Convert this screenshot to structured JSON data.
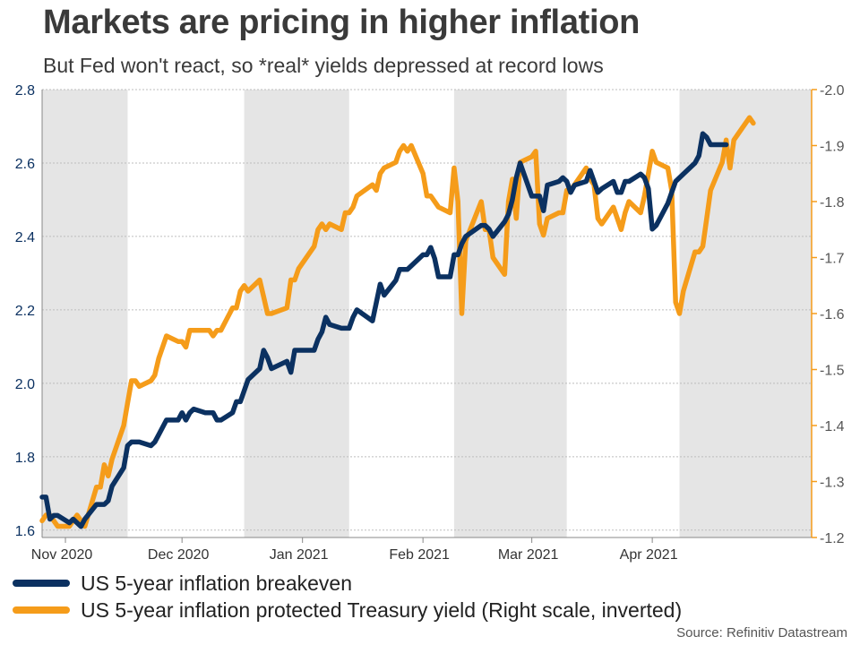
{
  "header": {
    "title": "Markets are pricing in higher inflation",
    "subtitle": "But Fed won't react, so *real* yields depressed at record lows"
  },
  "legend": {
    "items": [
      {
        "label": "US 5-year inflation breakeven",
        "color": "#0b3161"
      },
      {
        "label": "US 5-year inflation protected Treasury yield (Right scale, inverted)",
        "color": "#f59c1a"
      }
    ]
  },
  "source": "Source: Refinitiv Datastream",
  "colors": {
    "shade": "#e5e5e5",
    "left_axis": "#0b3161",
    "right_axis": "#f59c1a",
    "grid": "#bdbdbd"
  },
  "chart_data": {
    "type": "line",
    "x_type": "date",
    "xlim": [
      "2020-10-26",
      "2021-05-12"
    ],
    "x_ticks": [
      {
        "date": "2020-11-01",
        "label": "Nov 2020"
      },
      {
        "date": "2020-12-01",
        "label": "Dec 2020"
      },
      {
        "date": "2021-01-01",
        "label": "Jan 2021"
      },
      {
        "date": "2021-02-01",
        "label": "Feb 2021"
      },
      {
        "date": "2021-03-01",
        "label": "Mar 2021"
      },
      {
        "date": "2021-04-01",
        "label": "Apr 2021"
      }
    ],
    "shaded_months": [
      [
        "2020-10-26",
        "2020-11-17"
      ],
      [
        "2020-12-17",
        "2021-01-13"
      ],
      [
        "2021-02-09",
        "2021-03-10"
      ],
      [
        "2021-04-08",
        "2021-05-12"
      ]
    ],
    "y_left": {
      "min": 1.58,
      "max": 2.8,
      "ticks": [
        1.6,
        1.8,
        2.0,
        2.2,
        2.4,
        2.6,
        2.8
      ],
      "labels": [
        "1.6",
        "1.8",
        "2.0",
        "2.2",
        "2.4",
        "2.6",
        "2.8"
      ]
    },
    "y_right": {
      "inverted": true,
      "top": -2.0,
      "bottom": -1.2,
      "ticks": [
        -2.0,
        -1.9,
        -1.8,
        -1.7,
        -1.6,
        -1.5,
        -1.4,
        -1.3,
        -1.2
      ],
      "labels": [
        "-2.0",
        "-1.9",
        "-1.8",
        "-1.7",
        "-1.6",
        "-1.5",
        "-1.4",
        "-1.3",
        "-1.2"
      ]
    },
    "grid": true,
    "legend_position": "bottom-left",
    "series": [
      {
        "name": "US 5-year inflation breakeven",
        "axis": "left",
        "color": "#0b3161",
        "points": [
          [
            "2020-10-26",
            1.69
          ],
          [
            "2020-10-27",
            1.69
          ],
          [
            "2020-10-28",
            1.63
          ],
          [
            "2020-10-29",
            1.64
          ],
          [
            "2020-10-30",
            1.64
          ],
          [
            "2020-11-02",
            1.62
          ],
          [
            "2020-11-03",
            1.63
          ],
          [
            "2020-11-04",
            1.62
          ],
          [
            "2020-11-05",
            1.61
          ],
          [
            "2020-11-06",
            1.63
          ],
          [
            "2020-11-09",
            1.67
          ],
          [
            "2020-11-10",
            1.67
          ],
          [
            "2020-11-11",
            1.67
          ],
          [
            "2020-11-12",
            1.68
          ],
          [
            "2020-11-13",
            1.72
          ],
          [
            "2020-11-16",
            1.77
          ],
          [
            "2020-11-17",
            1.83
          ],
          [
            "2020-11-18",
            1.84
          ],
          [
            "2020-11-19",
            1.84
          ],
          [
            "2020-11-20",
            1.84
          ],
          [
            "2020-11-23",
            1.83
          ],
          [
            "2020-11-24",
            1.84
          ],
          [
            "2020-11-25",
            1.86
          ],
          [
            "2020-11-27",
            1.9
          ],
          [
            "2020-11-30",
            1.9
          ],
          [
            "2020-12-01",
            1.92
          ],
          [
            "2020-12-02",
            1.9
          ],
          [
            "2020-12-03",
            1.92
          ],
          [
            "2020-12-04",
            1.93
          ],
          [
            "2020-12-07",
            1.92
          ],
          [
            "2020-12-08",
            1.92
          ],
          [
            "2020-12-09",
            1.92
          ],
          [
            "2020-12-10",
            1.9
          ],
          [
            "2020-12-11",
            1.9
          ],
          [
            "2020-12-14",
            1.92
          ],
          [
            "2020-12-15",
            1.95
          ],
          [
            "2020-12-16",
            1.95
          ],
          [
            "2020-12-17",
            1.98
          ],
          [
            "2020-12-18",
            2.01
          ],
          [
            "2020-12-21",
            2.04
          ],
          [
            "2020-12-22",
            2.09
          ],
          [
            "2020-12-23",
            2.07
          ],
          [
            "2020-12-24",
            2.04
          ],
          [
            "2020-12-28",
            2.06
          ],
          [
            "2020-12-29",
            2.03
          ],
          [
            "2020-12-30",
            2.09
          ],
          [
            "2020-12-31",
            2.09
          ],
          [
            "2021-01-04",
            2.09
          ],
          [
            "2021-01-05",
            2.12
          ],
          [
            "2021-01-06",
            2.14
          ],
          [
            "2021-01-07",
            2.18
          ],
          [
            "2021-01-08",
            2.16
          ],
          [
            "2021-01-11",
            2.15
          ],
          [
            "2021-01-12",
            2.15
          ],
          [
            "2021-01-13",
            2.15
          ],
          [
            "2021-01-14",
            2.18
          ],
          [
            "2021-01-15",
            2.2
          ],
          [
            "2021-01-19",
            2.17
          ],
          [
            "2021-01-20",
            2.22
          ],
          [
            "2021-01-21",
            2.27
          ],
          [
            "2021-01-22",
            2.24
          ],
          [
            "2021-01-25",
            2.28
          ],
          [
            "2021-01-26",
            2.31
          ],
          [
            "2021-01-27",
            2.31
          ],
          [
            "2021-01-28",
            2.31
          ],
          [
            "2021-01-29",
            2.32
          ],
          [
            "2021-02-01",
            2.35
          ],
          [
            "2021-02-02",
            2.35
          ],
          [
            "2021-02-03",
            2.37
          ],
          [
            "2021-02-04",
            2.34
          ],
          [
            "2021-02-05",
            2.29
          ],
          [
            "2021-02-08",
            2.29
          ],
          [
            "2021-02-09",
            2.35
          ],
          [
            "2021-02-10",
            2.35
          ],
          [
            "2021-02-11",
            2.38
          ],
          [
            "2021-02-12",
            2.4
          ],
          [
            "2021-02-16",
            2.43
          ],
          [
            "2021-02-17",
            2.43
          ],
          [
            "2021-02-18",
            2.42
          ],
          [
            "2021-02-19",
            2.4
          ],
          [
            "2021-02-22",
            2.44
          ],
          [
            "2021-02-23",
            2.46
          ],
          [
            "2021-02-24",
            2.5
          ],
          [
            "2021-02-25",
            2.56
          ],
          [
            "2021-02-26",
            2.6
          ],
          [
            "2021-03-01",
            2.51
          ],
          [
            "2021-03-02",
            2.51
          ],
          [
            "2021-03-03",
            2.51
          ],
          [
            "2021-03-04",
            2.47
          ],
          [
            "2021-03-05",
            2.54
          ],
          [
            "2021-03-08",
            2.55
          ],
          [
            "2021-03-09",
            2.56
          ],
          [
            "2021-03-10",
            2.55
          ],
          [
            "2021-03-11",
            2.52
          ],
          [
            "2021-03-12",
            2.54
          ],
          [
            "2021-03-15",
            2.55
          ],
          [
            "2021-03-16",
            2.58
          ],
          [
            "2021-03-17",
            2.55
          ],
          [
            "2021-03-18",
            2.52
          ],
          [
            "2021-03-19",
            2.53
          ],
          [
            "2021-03-22",
            2.55
          ],
          [
            "2021-03-23",
            2.52
          ],
          [
            "2021-03-24",
            2.52
          ],
          [
            "2021-03-25",
            2.55
          ],
          [
            "2021-03-26",
            2.55
          ],
          [
            "2021-03-29",
            2.57
          ],
          [
            "2021-03-30",
            2.56
          ],
          [
            "2021-03-31",
            2.53
          ],
          [
            "2021-04-01",
            2.42
          ],
          [
            "2021-04-02",
            2.43
          ],
          [
            "2021-04-05",
            2.49
          ],
          [
            "2021-04-06",
            2.52
          ],
          [
            "2021-04-07",
            2.55
          ],
          [
            "2021-04-08",
            2.56
          ],
          [
            "2021-04-09",
            2.57
          ],
          [
            "2021-04-12",
            2.6
          ],
          [
            "2021-04-13",
            2.62
          ],
          [
            "2021-04-14",
            2.68
          ],
          [
            "2021-04-15",
            2.67
          ],
          [
            "2021-04-16",
            2.65
          ],
          [
            "2021-04-19",
            2.65
          ],
          [
            "2021-04-20",
            2.65
          ]
        ]
      },
      {
        "name": "US 5-year inflation protected Treasury yield (Right scale, inverted)",
        "axis": "right",
        "color": "#f59c1a",
        "points": [
          [
            "2020-10-26",
            -1.23
          ],
          [
            "2020-10-27",
            -1.24
          ],
          [
            "2020-10-28",
            -1.24
          ],
          [
            "2020-10-29",
            -1.23
          ],
          [
            "2020-10-30",
            -1.22
          ],
          [
            "2020-11-02",
            -1.22
          ],
          [
            "2020-11-03",
            -1.23
          ],
          [
            "2020-11-04",
            -1.24
          ],
          [
            "2020-11-05",
            -1.23
          ],
          [
            "2020-11-06",
            -1.22
          ],
          [
            "2020-11-09",
            -1.29
          ],
          [
            "2020-11-10",
            -1.29
          ],
          [
            "2020-11-11",
            -1.33
          ],
          [
            "2020-11-12",
            -1.31
          ],
          [
            "2020-11-13",
            -1.34
          ],
          [
            "2020-11-16",
            -1.4
          ],
          [
            "2020-11-17",
            -1.44
          ],
          [
            "2020-11-18",
            -1.48
          ],
          [
            "2020-11-19",
            -1.48
          ],
          [
            "2020-11-20",
            -1.47
          ],
          [
            "2020-11-23",
            -1.48
          ],
          [
            "2020-11-24",
            -1.49
          ],
          [
            "2020-11-25",
            -1.52
          ],
          [
            "2020-11-27",
            -1.56
          ],
          [
            "2020-11-30",
            -1.55
          ],
          [
            "2020-12-01",
            -1.55
          ],
          [
            "2020-12-02",
            -1.54
          ],
          [
            "2020-12-03",
            -1.57
          ],
          [
            "2020-12-04",
            -1.57
          ],
          [
            "2020-12-07",
            -1.57
          ],
          [
            "2020-12-08",
            -1.57
          ],
          [
            "2020-12-09",
            -1.56
          ],
          [
            "2020-12-10",
            -1.57
          ],
          [
            "2020-12-11",
            -1.57
          ],
          [
            "2020-12-14",
            -1.61
          ],
          [
            "2020-12-15",
            -1.61
          ],
          [
            "2020-12-16",
            -1.64
          ],
          [
            "2020-12-17",
            -1.65
          ],
          [
            "2020-12-18",
            -1.64
          ],
          [
            "2020-12-21",
            -1.66
          ],
          [
            "2020-12-22",
            -1.63
          ],
          [
            "2020-12-23",
            -1.6
          ],
          [
            "2020-12-24",
            -1.6
          ],
          [
            "2020-12-28",
            -1.61
          ],
          [
            "2020-12-29",
            -1.66
          ],
          [
            "2020-12-30",
            -1.66
          ],
          [
            "2020-12-31",
            -1.68
          ],
          [
            "2021-01-04",
            -1.72
          ],
          [
            "2021-01-05",
            -1.75
          ],
          [
            "2021-01-06",
            -1.76
          ],
          [
            "2021-01-07",
            -1.75
          ],
          [
            "2021-01-08",
            -1.76
          ],
          [
            "2021-01-11",
            -1.75
          ],
          [
            "2021-01-12",
            -1.78
          ],
          [
            "2021-01-13",
            -1.78
          ],
          [
            "2021-01-14",
            -1.79
          ],
          [
            "2021-01-15",
            -1.81
          ],
          [
            "2021-01-19",
            -1.83
          ],
          [
            "2021-01-20",
            -1.82
          ],
          [
            "2021-01-21",
            -1.85
          ],
          [
            "2021-01-22",
            -1.86
          ],
          [
            "2021-01-25",
            -1.87
          ],
          [
            "2021-01-26",
            -1.89
          ],
          [
            "2021-01-27",
            -1.9
          ],
          [
            "2021-01-28",
            -1.89
          ],
          [
            "2021-01-29",
            -1.9
          ],
          [
            "2021-02-01",
            -1.85
          ],
          [
            "2021-02-02",
            -1.81
          ],
          [
            "2021-02-03",
            -1.81
          ],
          [
            "2021-02-04",
            -1.8
          ],
          [
            "2021-02-05",
            -1.79
          ],
          [
            "2021-02-08",
            -1.78
          ],
          [
            "2021-02-09",
            -1.86
          ],
          [
            "2021-02-10",
            -1.8
          ],
          [
            "2021-02-11",
            -1.6
          ],
          [
            "2021-02-12",
            -1.73
          ],
          [
            "2021-02-16",
            -1.8
          ],
          [
            "2021-02-17",
            -1.75
          ],
          [
            "2021-02-18",
            -1.75
          ],
          [
            "2021-02-19",
            -1.7
          ],
          [
            "2021-02-22",
            -1.67
          ],
          [
            "2021-02-23",
            -1.8
          ],
          [
            "2021-02-24",
            -1.84
          ],
          [
            "2021-02-25",
            -1.77
          ],
          [
            "2021-02-26",
            -1.87
          ],
          [
            "2021-03-01",
            -1.88
          ],
          [
            "2021-03-02",
            -1.89
          ],
          [
            "2021-03-03",
            -1.76
          ],
          [
            "2021-03-04",
            -1.74
          ],
          [
            "2021-03-05",
            -1.77
          ],
          [
            "2021-03-08",
            -1.78
          ],
          [
            "2021-03-09",
            -1.78
          ],
          [
            "2021-03-10",
            -1.82
          ],
          [
            "2021-03-11",
            -1.82
          ],
          [
            "2021-03-12",
            -1.83
          ],
          [
            "2021-03-15",
            -1.86
          ],
          [
            "2021-03-16",
            -1.84
          ],
          [
            "2021-03-17",
            -1.83
          ],
          [
            "2021-03-18",
            -1.77
          ],
          [
            "2021-03-19",
            -1.76
          ],
          [
            "2021-03-22",
            -1.79
          ],
          [
            "2021-03-23",
            -1.77
          ],
          [
            "2021-03-24",
            -1.75
          ],
          [
            "2021-03-25",
            -1.78
          ],
          [
            "2021-03-26",
            -1.8
          ],
          [
            "2021-03-29",
            -1.78
          ],
          [
            "2021-03-30",
            -1.81
          ],
          [
            "2021-03-31",
            -1.85
          ],
          [
            "2021-04-01",
            -1.89
          ],
          [
            "2021-04-02",
            -1.87
          ],
          [
            "2021-04-05",
            -1.86
          ],
          [
            "2021-04-06",
            -1.82
          ],
          [
            "2021-04-07",
            -1.62
          ],
          [
            "2021-04-08",
            -1.6
          ],
          [
            "2021-04-09",
            -1.64
          ],
          [
            "2021-04-12",
            -1.71
          ],
          [
            "2021-04-13",
            -1.71
          ],
          [
            "2021-04-14",
            -1.72
          ],
          [
            "2021-04-15",
            -1.77
          ],
          [
            "2021-04-16",
            -1.82
          ],
          [
            "2021-04-19",
            -1.87
          ],
          [
            "2021-04-20",
            -1.91
          ],
          [
            "2021-04-21",
            -1.86
          ],
          [
            "2021-04-22",
            -1.91
          ],
          [
            "2021-04-23",
            -1.92
          ],
          [
            "2021-04-26",
            -1.95
          ],
          [
            "2021-04-27",
            -1.94
          ]
        ]
      }
    ]
  }
}
